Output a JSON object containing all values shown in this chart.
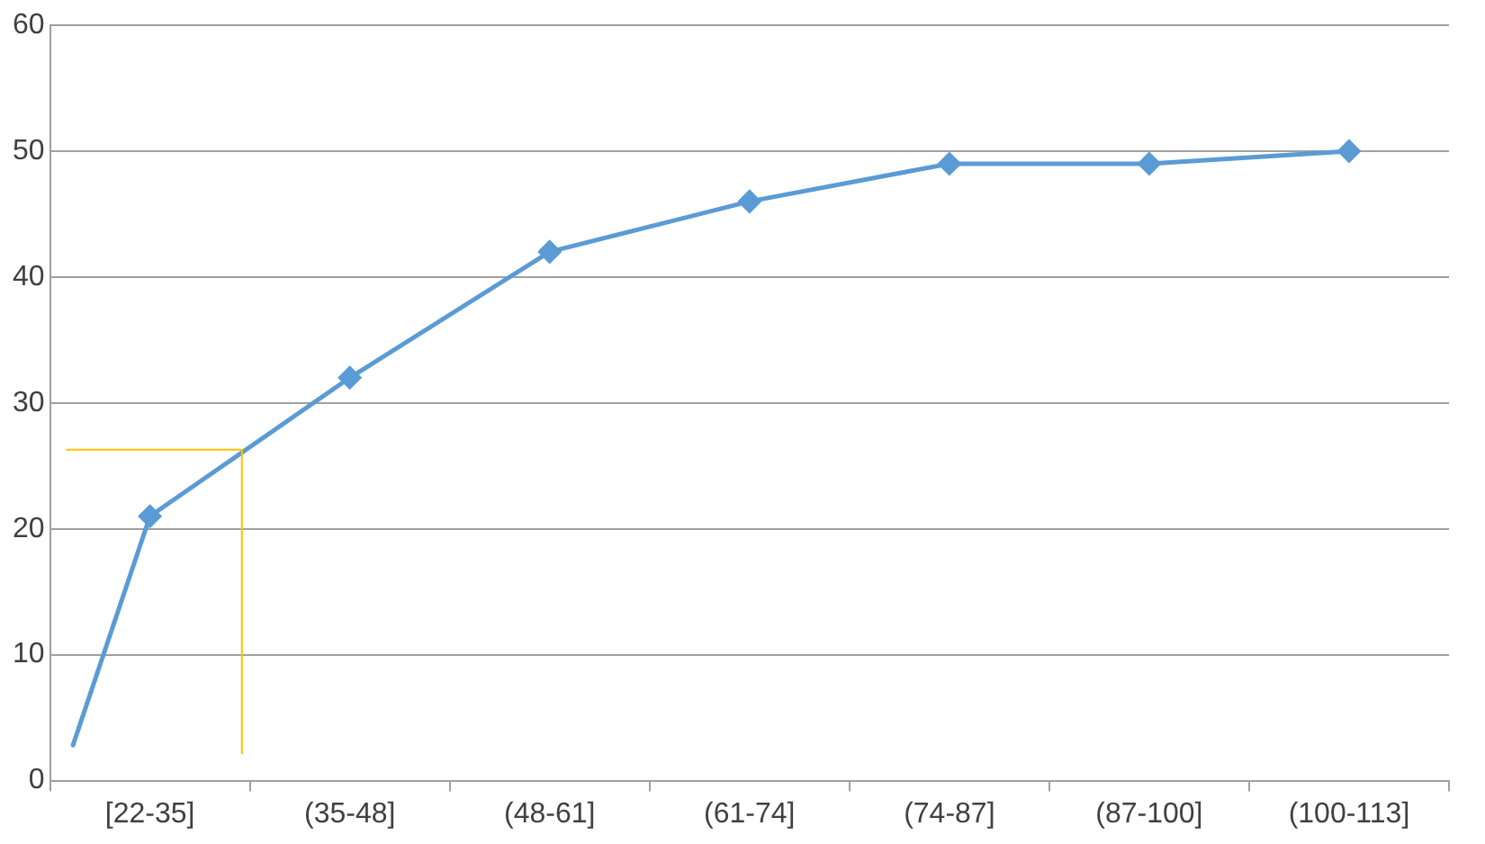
{
  "chart_data": {
    "type": "line",
    "categories": [
      "[22-35]",
      "(35-48]",
      "(48-61]",
      "(61-74]",
      "(74-87]",
      "(87-100]",
      "(100-113]"
    ],
    "ylim": [
      0,
      60
    ],
    "yticks": [
      0,
      10,
      20,
      30,
      40,
      50,
      60
    ],
    "grid": "y",
    "legend": false,
    "marker": "diamond",
    "series": [
      {
        "color": "#5b9bd5",
        "values": [
          21,
          32,
          42,
          46,
          49,
          49,
          50
        ]
      }
    ]
  }
}
